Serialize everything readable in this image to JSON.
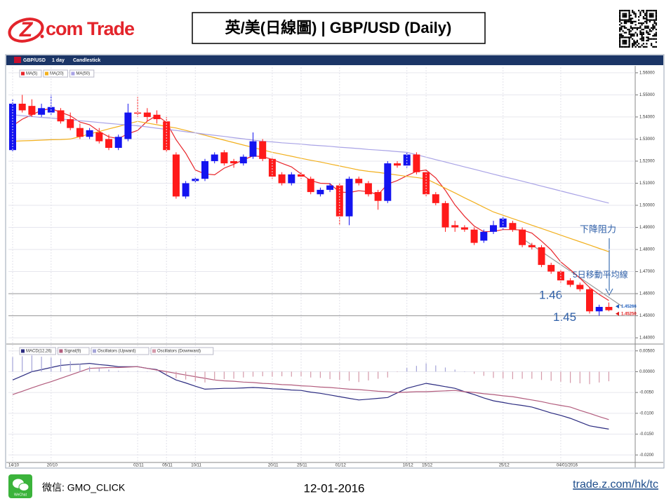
{
  "header": {
    "logo_mark": "Z",
    "logo_text": "com Trade",
    "title": "英/美(日線圖) | GBP/USD  (Daily)"
  },
  "toolbar": {
    "symbol": "GBP/USD",
    "period": "1 day",
    "chart_type": "Candlestick"
  },
  "footer": {
    "wechat_icon_label": "WeChat",
    "wechat": "微信: GMO_CLICK",
    "date": "12-01-2016",
    "url": "trade.z.com/hk/tc"
  },
  "chart_data": [
    {
      "type": "candlestick",
      "up_color": "#1414f0",
      "down_color": "#ff1a1a",
      "open": [
        1.525,
        1.546,
        1.545,
        1.541,
        1.542,
        1.543,
        1.539,
        1.535,
        1.531,
        1.533,
        1.53,
        1.526,
        1.53,
        1.542,
        1.542,
        1.541,
        1.538,
        1.523,
        1.504,
        1.511,
        1.512,
        1.52,
        1.524,
        1.52,
        1.519,
        1.522,
        1.529,
        1.521,
        1.514,
        1.51,
        1.514,
        1.512,
        1.505,
        1.507,
        1.509,
        1.495,
        1.512,
        1.51,
        1.506,
        1.502,
        1.519,
        1.518,
        1.523,
        1.515,
        1.505,
        1.501,
        1.491,
        1.49,
        1.489,
        1.484,
        1.488,
        1.49,
        1.492,
        1.489,
        1.482,
        1.481,
        1.473,
        1.47,
        1.466,
        1.464,
        1.462,
        1.452,
        1.454
      ],
      "high": [
        1.548,
        1.55,
        1.548,
        1.546,
        1.55,
        1.544,
        1.542,
        1.537,
        1.535,
        1.535,
        1.532,
        1.532,
        1.546,
        1.549,
        1.544,
        1.543,
        1.54,
        1.524,
        1.511,
        1.513,
        1.521,
        1.524,
        1.525,
        1.521,
        1.523,
        1.533,
        1.53,
        1.522,
        1.515,
        1.515,
        1.515,
        1.513,
        1.508,
        1.51,
        1.51,
        1.513,
        1.513,
        1.511,
        1.507,
        1.52,
        1.52,
        1.524,
        1.524,
        1.516,
        1.506,
        1.502,
        1.493,
        1.491,
        1.49,
        1.489,
        1.493,
        1.495,
        1.493,
        1.49,
        1.483,
        1.482,
        1.474,
        1.471,
        1.467,
        1.465,
        1.463,
        1.455,
        1.456
      ],
      "low": [
        1.5245,
        1.542,
        1.54,
        1.54,
        1.541,
        1.537,
        1.534,
        1.53,
        1.53,
        1.528,
        1.525,
        1.525,
        1.529,
        1.54,
        1.538,
        1.537,
        1.524,
        1.503,
        1.503,
        1.51,
        1.511,
        1.519,
        1.518,
        1.517,
        1.518,
        1.521,
        1.52,
        1.512,
        1.509,
        1.509,
        1.512,
        1.505,
        1.504,
        1.506,
        1.491,
        1.491,
        1.509,
        1.504,
        1.498,
        1.501,
        1.517,
        1.517,
        1.514,
        1.504,
        1.5,
        1.488,
        1.488,
        1.488,
        1.482,
        1.483,
        1.487,
        1.489,
        1.488,
        1.481,
        1.48,
        1.472,
        1.469,
        1.465,
        1.463,
        1.461,
        1.451,
        1.45,
        1.452
      ],
      "close": [
        1.546,
        1.543,
        1.541,
        1.544,
        1.5445,
        1.538,
        1.535,
        1.531,
        1.534,
        1.529,
        1.526,
        1.531,
        1.542,
        1.5415,
        1.54,
        1.539,
        1.525,
        1.504,
        1.51,
        1.512,
        1.52,
        1.523,
        1.519,
        1.519,
        1.522,
        1.529,
        1.521,
        1.513,
        1.51,
        1.514,
        1.513,
        1.506,
        1.507,
        1.509,
        1.495,
        1.512,
        1.51,
        1.505,
        1.502,
        1.519,
        1.518,
        1.523,
        1.515,
        1.505,
        1.501,
        1.49,
        1.49,
        1.489,
        1.483,
        1.488,
        1.491,
        1.494,
        1.489,
        1.482,
        1.481,
        1.473,
        1.47,
        1.466,
        1.464,
        1.462,
        1.452,
        1.454,
        1.4525
      ],
      "series": [
        {
          "name": "MA(5)",
          "color": "#e8262b",
          "values": [
            1.536,
            1.539,
            1.541,
            1.543,
            1.5438,
            1.5421,
            1.5405,
            1.5377,
            1.5365,
            1.5334,
            1.531,
            1.5302,
            1.5324,
            1.5339,
            1.5381,
            1.5407,
            1.5375,
            1.5297,
            1.5236,
            1.516,
            1.5142,
            1.5138,
            1.5168,
            1.5186,
            1.5206,
            1.5224,
            1.522,
            1.5208,
            1.519,
            1.5174,
            1.5142,
            1.5112,
            1.51,
            1.5098,
            1.506,
            1.5058,
            1.5066,
            1.5062,
            1.5048,
            1.5096,
            1.5112,
            1.5134,
            1.5154,
            1.516,
            1.5124,
            1.5068,
            1.5002,
            1.495,
            1.4906,
            1.488,
            1.4882,
            1.489,
            1.489,
            1.4888,
            1.4874,
            1.4838,
            1.4798,
            1.4744,
            1.4708,
            1.467,
            1.4628,
            1.4596,
            1.4569
          ]
        },
        {
          "name": "MA(20)",
          "color": "#f2b01e",
          "values": [
            1.529,
            1.5292,
            1.5293,
            1.5295,
            1.5297,
            1.5298,
            1.53,
            1.5311,
            1.5323,
            1.5334,
            1.5346,
            1.5357,
            1.5369,
            1.538,
            1.5372,
            1.5365,
            1.5357,
            1.535,
            1.5339,
            1.5328,
            1.5317,
            1.5306,
            1.5295,
            1.5284,
            1.5273,
            1.5262,
            1.5251,
            1.524,
            1.5231,
            1.5222,
            1.5213,
            1.5204,
            1.5196,
            1.5187,
            1.5178,
            1.5169,
            1.516,
            1.5154,
            1.5149,
            1.5143,
            1.5137,
            1.5131,
            1.5126,
            1.512,
            1.5099,
            1.5077,
            1.5056,
            1.5034,
            1.5013,
            1.4991,
            1.497,
            1.4955,
            1.494,
            1.4925,
            1.491,
            1.4895,
            1.488,
            1.4865,
            1.485,
            1.4835,
            1.482,
            1.4805,
            1.479
          ]
        },
        {
          "name": "MA(50)",
          "color": "#a9a3e6",
          "values": [
            1.541,
            1.5406,
            1.5402,
            1.5398,
            1.5395,
            1.5391,
            1.5387,
            1.5383,
            1.5379,
            1.5375,
            1.5371,
            1.5367,
            1.5364,
            1.536,
            1.5355,
            1.5349,
            1.5344,
            1.5339,
            1.5333,
            1.5328,
            1.5322,
            1.5317,
            1.5312,
            1.5306,
            1.5301,
            1.5295,
            1.529,
            1.5287,
            1.5283,
            1.528,
            1.5277,
            1.5273,
            1.527,
            1.5267,
            1.5263,
            1.526,
            1.5257,
            1.5253,
            1.525,
            1.5247,
            1.5243,
            1.524,
            1.5229,
            1.5218,
            1.5207,
            1.5196,
            1.5185,
            1.5174,
            1.5163,
            1.5152,
            1.5141,
            1.513,
            1.512,
            1.5109,
            1.5098,
            1.5087,
            1.5076,
            1.5065,
            1.5054,
            1.5043,
            1.5032,
            1.5021,
            1.501
          ]
        }
      ],
      "ylim": [
        1.4375,
        1.5625
      ],
      "yticks": [
        {
          "value": 1.56,
          "label": "1.56000"
        },
        {
          "value": 1.55,
          "label": "1.55000"
        },
        {
          "value": 1.54,
          "label": "1.54000"
        },
        {
          "value": 1.53,
          "label": "1.53000"
        },
        {
          "value": 1.52,
          "label": "1.52000"
        },
        {
          "value": 1.51,
          "label": "1.51000"
        },
        {
          "value": 1.5,
          "label": "1.50000"
        },
        {
          "value": 1.49,
          "label": "1.49000"
        },
        {
          "value": 1.48,
          "label": "1.48000"
        },
        {
          "value": 1.47,
          "label": "1.47000"
        },
        {
          "value": 1.46,
          "label": "1.46000"
        },
        {
          "value": 1.45,
          "label": "1.45000"
        },
        {
          "value": 1.44,
          "label": "1.44000"
        }
      ],
      "grid": true,
      "levels": [
        {
          "value": 1.46,
          "label": "1.46"
        },
        {
          "value": 1.45,
          "label": "1.45"
        }
      ],
      "price_labels": [
        {
          "value": 1.45266,
          "label": "1.45266",
          "color": "#1f5fbf"
        },
        {
          "value": 1.4525,
          "label": "1.45250",
          "color": "#e01b1b"
        }
      ],
      "annotations": [
        "下降阻力",
        "5日移動平均線"
      ]
    },
    {
      "type": "macd",
      "categories": [
        "14/10",
        null,
        null,
        null,
        "20/10",
        null,
        null,
        null,
        null,
        null,
        null,
        null,
        null,
        "02/11",
        null,
        null,
        "05/11",
        null,
        null,
        "10/11",
        null,
        null,
        null,
        null,
        null,
        null,
        null,
        "20/11",
        null,
        null,
        "25/11",
        null,
        null,
        null,
        "01/12",
        null,
        null,
        null,
        null,
        null,
        null,
        "10/12",
        null,
        "15/12",
        null,
        null,
        null,
        null,
        null,
        null,
        null,
        "25/12",
        null,
        null,
        null,
        null,
        null,
        "04/01/2016",
        null,
        null,
        null,
        null,
        null
      ],
      "series": [
        {
          "name": "MACD(12,26)",
          "color": "#2b2b80",
          "values": [
            -0.002,
            -0.001,
            0.0,
            0.0005,
            0.001,
            0.0015,
            0.0017,
            0.0018,
            0.002,
            0.0017,
            0.0015,
            0.0012,
            0.0012,
            0.0012,
            0.0008,
            0.0005,
            -0.0008,
            -0.002,
            -0.0027,
            -0.0035,
            -0.0042,
            -0.0041,
            -0.004,
            -0.004,
            -0.0039,
            -0.0038,
            -0.0039,
            -0.0041,
            -0.0042,
            -0.0044,
            -0.0045,
            -0.0049,
            -0.0052,
            -0.0056,
            -0.006,
            -0.0064,
            -0.0068,
            -0.0066,
            -0.0064,
            -0.0062,
            -0.0051,
            -0.004,
            -0.0034,
            -0.0028,
            -0.0032,
            -0.0036,
            -0.004,
            -0.0048,
            -0.0055,
            -0.0063,
            -0.007,
            -0.0074,
            -0.0078,
            -0.0081,
            -0.0085,
            -0.0092,
            -0.0099,
            -0.0105,
            -0.0112,
            -0.0121,
            -0.013,
            -0.0134,
            -0.0138
          ]
        },
        {
          "name": "Signal(9)",
          "color": "#b25c7d",
          "values": [
            -0.0055,
            -0.0047,
            -0.0039,
            -0.0031,
            -0.0024,
            -0.0016,
            -0.0008,
            0.0,
            0.0008,
            0.0009,
            0.001,
            0.001,
            0.0011,
            0.0012,
            0.0008,
            0.0004,
            0.0,
            -0.0004,
            -0.0008,
            -0.0012,
            -0.0016,
            -0.002,
            -0.0022,
            -0.0023,
            -0.0025,
            -0.0026,
            -0.0028,
            -0.0029,
            -0.0031,
            -0.0032,
            -0.0034,
            -0.0035,
            -0.0037,
            -0.0038,
            -0.004,
            -0.0042,
            -0.0043,
            -0.0045,
            -0.0047,
            -0.0048,
            -0.005,
            -0.0049,
            -0.0048,
            -0.0048,
            -0.0047,
            -0.0046,
            -0.0045,
            -0.0048,
            -0.005,
            -0.0053,
            -0.0055,
            -0.0058,
            -0.006,
            -0.0064,
            -0.0068,
            -0.0072,
            -0.0077,
            -0.0081,
            -0.0085,
            -0.0093,
            -0.01,
            -0.0108,
            -0.0115
          ]
        },
        {
          "name": "Oscillators (Upward)",
          "color": "#a4a4d8",
          "bars": true,
          "values": [
            0.0035,
            0.0037,
            0.0039,
            0.0036,
            0.0034,
            0.0031,
            0.0025,
            0.0018,
            0.0012,
            0.0008,
            0.0005,
            0.0002,
            0.0001,
            0.0,
            0.0,
            0.0001,
            null,
            null,
            null,
            null,
            null,
            null,
            null,
            null,
            null,
            null,
            null,
            null,
            null,
            null,
            null,
            null,
            null,
            null,
            null,
            null,
            null,
            null,
            null,
            null,
            null,
            0.0009,
            0.0014,
            0.002,
            0.0015,
            0.001,
            0.0005,
            0.0,
            null,
            null,
            null,
            null,
            null,
            null,
            null,
            null,
            null,
            null,
            null,
            null,
            null,
            null,
            null
          ]
        },
        {
          "name": "Oscillators (Downward)",
          "color": "#d59aaa",
          "bars": true,
          "values": [
            null,
            null,
            null,
            null,
            null,
            null,
            null,
            null,
            null,
            null,
            null,
            null,
            null,
            null,
            null,
            null,
            -0.0008,
            -0.0016,
            -0.0019,
            -0.0023,
            -0.0026,
            -0.0021,
            -0.0018,
            -0.0017,
            -0.0014,
            -0.0012,
            -0.0011,
            -0.0012,
            -0.0011,
            -0.0012,
            -0.0011,
            -0.0014,
            -0.0015,
            -0.0018,
            -0.002,
            -0.0022,
            -0.0025,
            -0.0021,
            -0.0017,
            -0.0014,
            -0.0001,
            null,
            null,
            null,
            null,
            null,
            null,
            null,
            -0.0005,
            -0.001,
            -0.0015,
            -0.0016,
            -0.0018,
            -0.0017,
            -0.0017,
            -0.002,
            -0.0022,
            -0.0024,
            -0.0027,
            -0.0028,
            -0.003,
            -0.0026,
            -0.0023
          ]
        }
      ],
      "ylim": [
        -0.0213,
        0.0063
      ],
      "yticks": [
        {
          "value": 0.005,
          "label": "0.00500"
        },
        {
          "value": 0,
          "label": "0.00000"
        },
        {
          "value": -0.005,
          "label": "-0.0050"
        },
        {
          "value": -0.01,
          "label": "-0.0100"
        },
        {
          "value": -0.015,
          "label": "-0.0150"
        },
        {
          "value": -0.02,
          "label": "-0.0200"
        }
      ],
      "grid": true
    }
  ]
}
